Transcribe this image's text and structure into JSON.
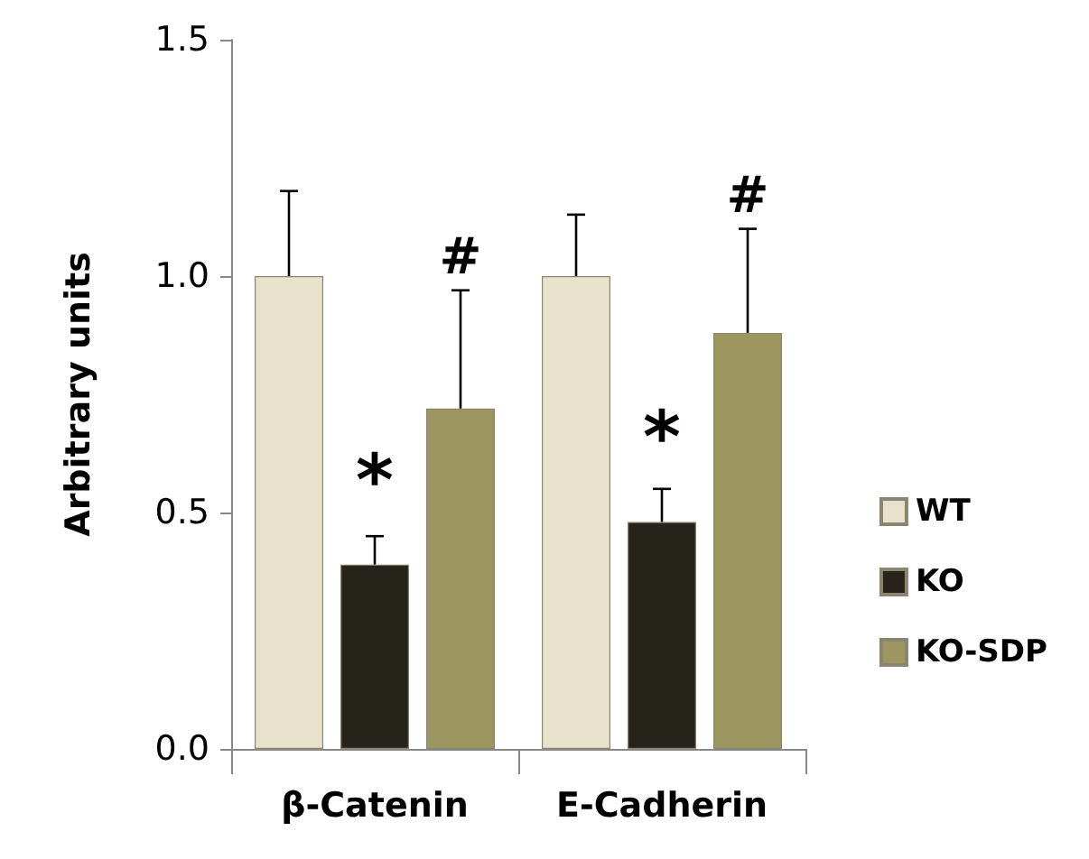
{
  "chart_data": {
    "type": "bar",
    "ylabel": "Arbitrary units",
    "categories": [
      "β-Catenin",
      "E-Cadherin"
    ],
    "series": [
      {
        "name": "WT",
        "color": "#e8e2cc",
        "values": [
          1.0,
          1.0
        ],
        "errors": [
          0.18,
          0.13
        ]
      },
      {
        "name": "KO",
        "color": "#25231a",
        "values": [
          0.39,
          0.48
        ],
        "errors": [
          0.06,
          0.07
        ],
        "value_labels": [
          "*",
          "*"
        ]
      },
      {
        "name": "KO-SDP",
        "color": "#9e9660",
        "values": [
          0.72,
          0.88
        ],
        "errors": [
          0.25,
          0.22
        ],
        "value_labels": [
          "#",
          "#"
        ]
      }
    ],
    "ylim": [
      0,
      1.5
    ],
    "yticks": [
      {
        "value": 0,
        "label": "0.0"
      },
      0.5,
      {
        "value": 1,
        "label": "1.0"
      },
      1.5
    ],
    "grid": false,
    "legend": "right"
  }
}
